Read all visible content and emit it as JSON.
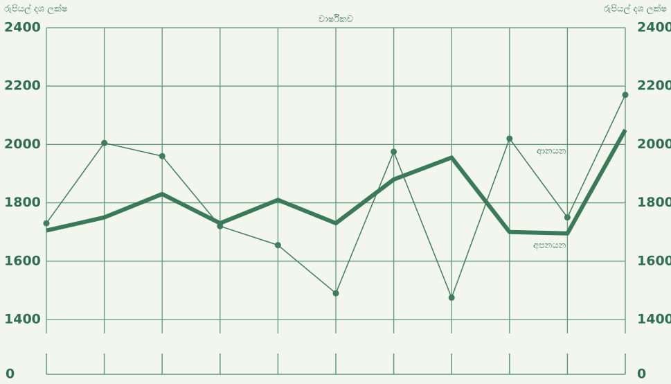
{
  "chart_data": {
    "type": "line",
    "title": "වාර්ෂිකව",
    "y_label": "රුපියල් දශ ලක්ෂ",
    "y2_label": "රුපියල් දශ ලක්ෂ",
    "y_origin_label": "0",
    "y2_origin_label": "0",
    "x": [
      0,
      1,
      2,
      3,
      4,
      5,
      6,
      7,
      8,
      9,
      10
    ],
    "xlim": [
      0,
      10
    ],
    "xticks": [
      0,
      1,
      2,
      3,
      4,
      5,
      6,
      7,
      8,
      9,
      10
    ],
    "ylim": [
      1400,
      2400
    ],
    "yticks": [
      1400,
      1600,
      1800,
      2000,
      2200,
      2400
    ],
    "y2lim": [
      1400,
      2400
    ],
    "y2ticks": [
      1400,
      1600,
      1800,
      2000,
      2200,
      2400
    ],
    "grid": true,
    "series": [
      {
        "name": "ආනයන",
        "color": "#3f7d5c",
        "style": "dotted",
        "values": [
          1730,
          2005,
          1960,
          1720,
          1655,
          1490,
          1975,
          1475,
          2020,
          1750,
          2170
        ]
      },
      {
        "name": "අපනයන",
        "color": "#3a7a58",
        "style": "thick",
        "values": [
          1705,
          1750,
          1830,
          1730,
          1810,
          1730,
          1880,
          1955,
          1700,
          1695,
          2050
        ]
      }
    ]
  }
}
